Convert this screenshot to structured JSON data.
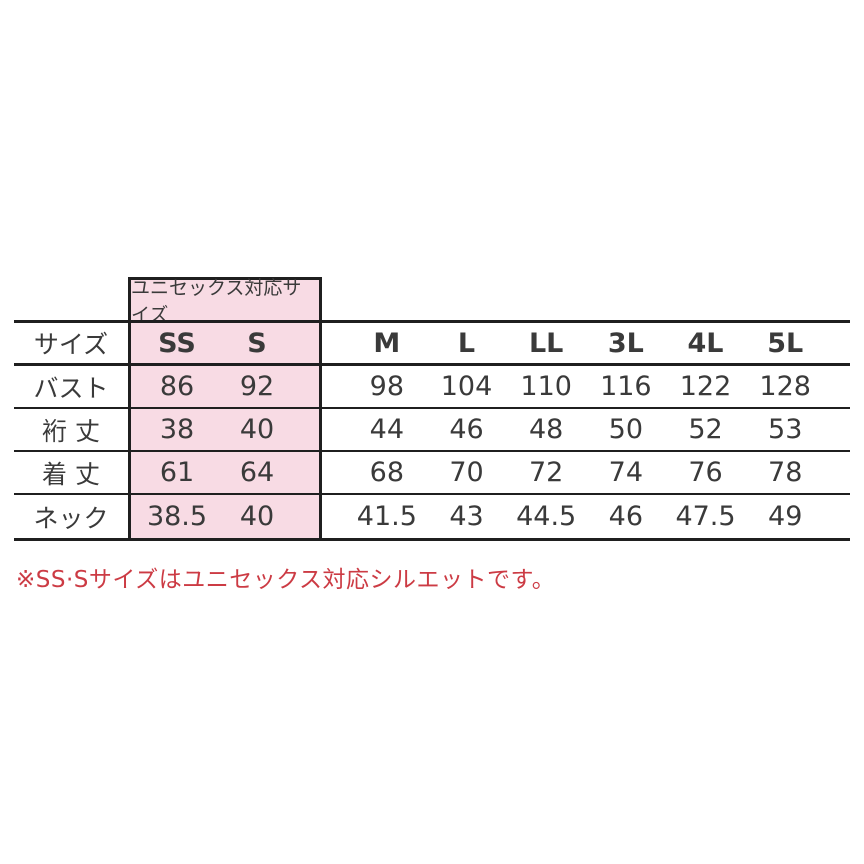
{
  "colors": {
    "highlight_pink": "#f8dbe4",
    "line_black": "#1f1f1f",
    "text_gray": "#3a3a3a",
    "note_red": "#cc3b44"
  },
  "unisex_header": "ユニセックス対応サイズ",
  "table": {
    "header_label": "サイズ",
    "unisex_sizes": [
      "SS",
      "S"
    ],
    "regular_sizes": [
      "M",
      "L",
      "LL",
      "3L",
      "4L",
      "5L"
    ],
    "rows": [
      {
        "label": "バスト",
        "unisex_values": [
          "86",
          "92"
        ],
        "regular_values": [
          "98",
          "104",
          "110",
          "116",
          "122",
          "128"
        ]
      },
      {
        "label": "裄 丈",
        "unisex_values": [
          "38",
          "40"
        ],
        "regular_values": [
          "44",
          "46",
          "48",
          "50",
          "52",
          "53"
        ]
      },
      {
        "label": "着 丈",
        "unisex_values": [
          "61",
          "64"
        ],
        "regular_values": [
          "68",
          "70",
          "72",
          "74",
          "76",
          "78"
        ]
      },
      {
        "label": "ネック",
        "unisex_values": [
          "38.5",
          "40"
        ],
        "regular_values": [
          "41.5",
          "43",
          "44.5",
          "46",
          "47.5",
          "49"
        ]
      }
    ]
  },
  "note": "※SS·Sサイズはユニセックス対応シルエットです。"
}
